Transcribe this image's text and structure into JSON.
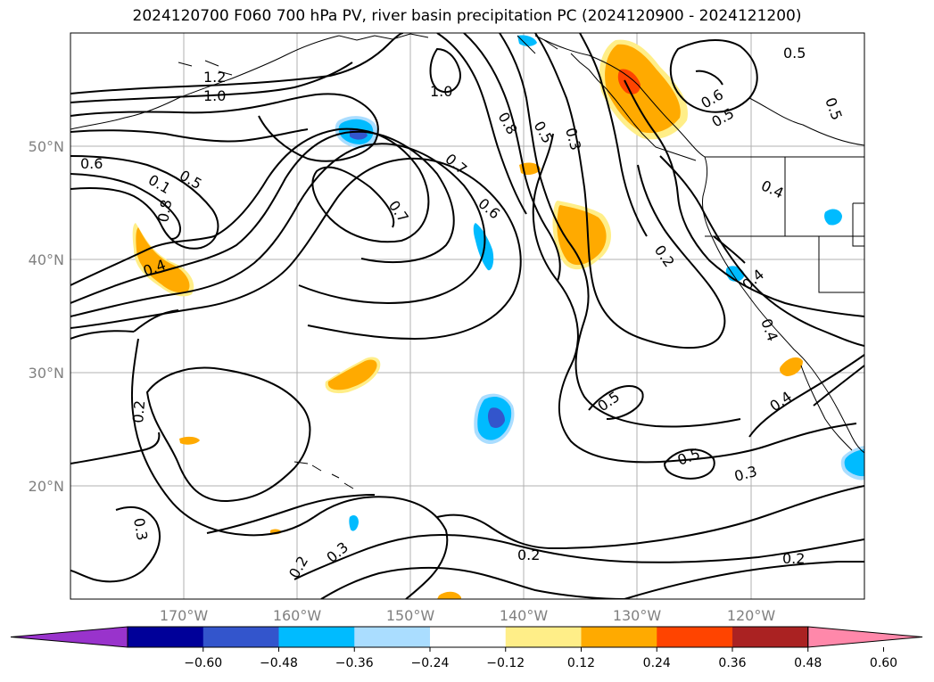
{
  "title": "2024120700 F060 700 hPa PV, river basin precipitation PC (2024120900 - 2024121200)",
  "map": {
    "lon_range": [
      -180,
      -110
    ],
    "lat_range": [
      10,
      60
    ],
    "lat_labels": [
      "50°N",
      "40°N",
      "30°N",
      "20°N"
    ],
    "lon_labels": [
      "170°W",
      "160°W",
      "150°W",
      "140°W",
      "130°W",
      "120°W"
    ],
    "contour_labels": [
      "1.2",
      "1.0",
      "1.0",
      "0.6",
      "0.5",
      "0.1",
      "0.8",
      "0.7",
      "0.6",
      "0.8",
      "0.5",
      "0.3",
      "0.7",
      "0.4",
      "0.2",
      "0.2",
      "0.5",
      "0.5",
      "0.3",
      "0.3",
      "0.3",
      "0.2",
      "0.2",
      "0.2",
      "0.5",
      "0.6",
      "0.5",
      "0.5",
      "0.4",
      "0.4",
      "0.4",
      "0.4"
    ]
  },
  "colorbar": {
    "ticks": [
      "−0.60",
      "−0.48",
      "−0.36",
      "−0.24",
      "−0.12",
      "0.12",
      "0.24",
      "0.36",
      "0.48",
      "0.60"
    ],
    "colors": [
      "#9933cc",
      "#000099",
      "#3355cc",
      "#00bbff",
      "#aaddff",
      "#ffffff",
      "#ffee88",
      "#ffaa00",
      "#ff4400",
      "#aa2222",
      "#ff88aa"
    ]
  }
}
